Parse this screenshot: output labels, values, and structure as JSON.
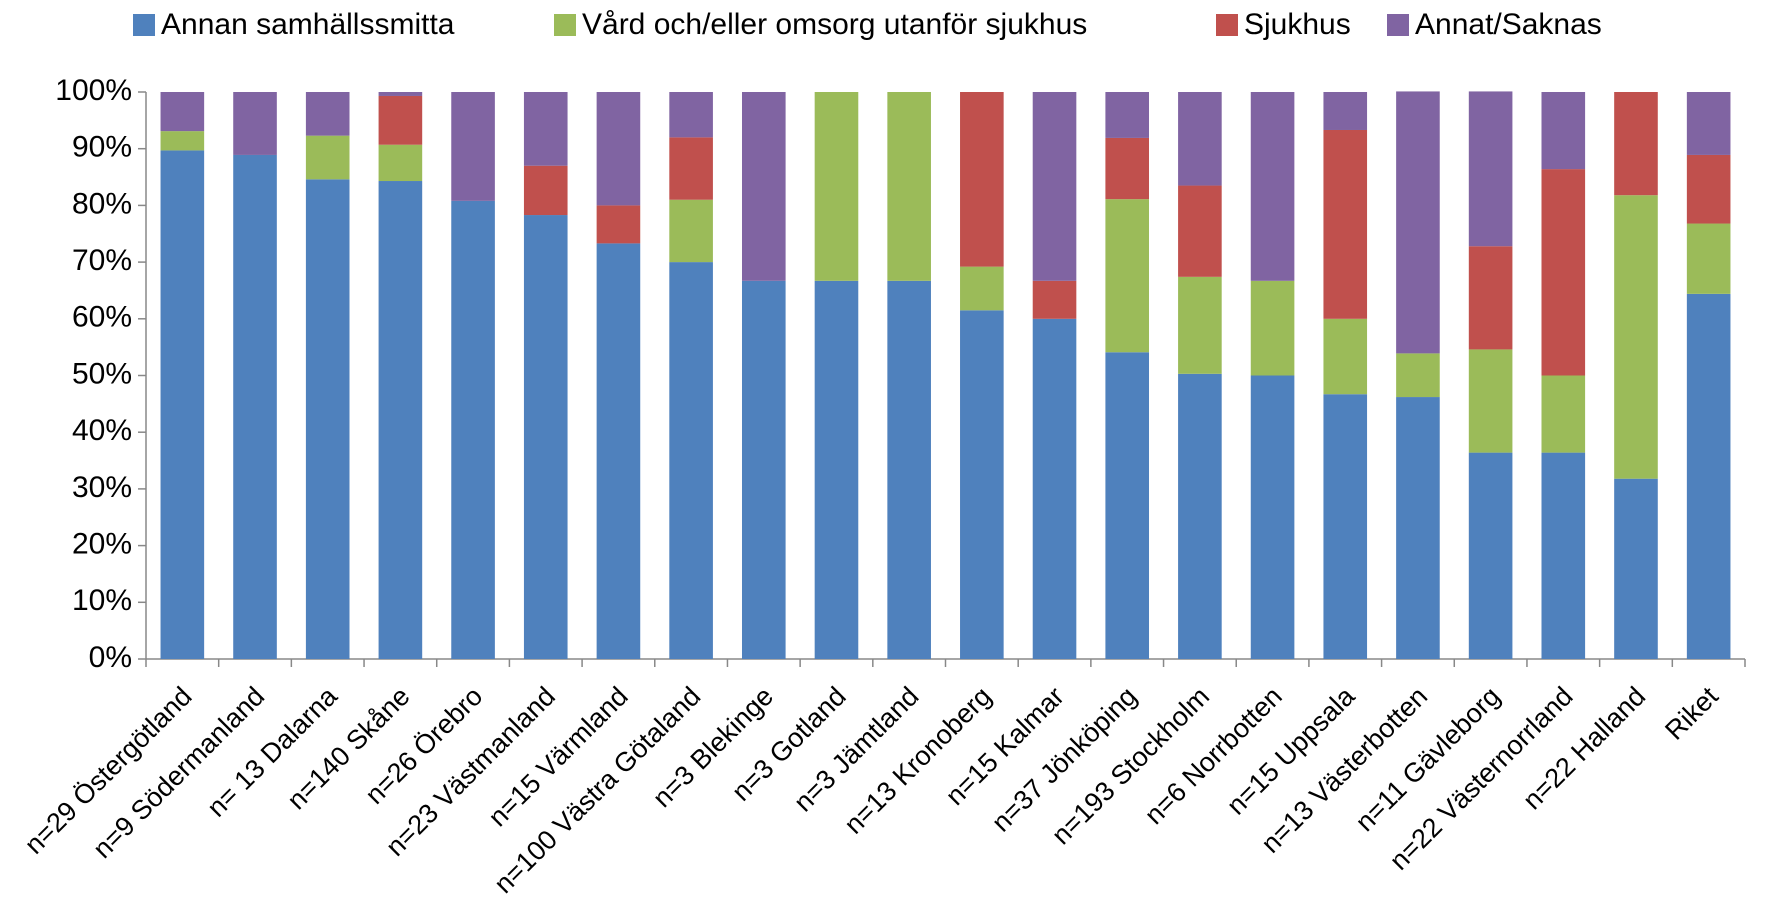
{
  "chart_data": {
    "type": "stacked_bar",
    "categories": [
      "n=29 Östergötland",
      "n=9 Södermanland",
      "n= 13 Dalarna",
      "n=140 Skåne",
      "n=26 Örebro",
      "n=23 Västmanland",
      "n=15 Värmland",
      "n=100 Västra Götaland",
      "n=3 Blekinge",
      "n=3 Gotland",
      "n=3 Jämtland",
      "n=13 Kronoberg",
      "n=15 Kalmar",
      "n=37 Jönköping",
      "n=193 Stockholm",
      "n=6 Norrbotten",
      "n=15 Uppsala",
      "n=13 Västerbotten",
      "n=11 Gävleborg",
      "n=22 Västernorrland",
      "n=22 Halland",
      "Riket"
    ],
    "series": [
      {
        "name": "Annan samhällssmitta",
        "color": "#4f81bd",
        "values": [
          89.7,
          88.9,
          84.6,
          84.3,
          80.8,
          78.3,
          73.3,
          70,
          66.7,
          66.7,
          66.7,
          61.5,
          60,
          54.1,
          50.3,
          50,
          46.7,
          46.2,
          36.4,
          36.4,
          31.8,
          64.4
        ]
      },
      {
        "name": "Vård och/eller omsorg utanför sjukhus",
        "color": "#9bbb59",
        "values": [
          3.4,
          0,
          7.7,
          6.4,
          0,
          0,
          0,
          11,
          0,
          33.3,
          33.3,
          7.7,
          0,
          27,
          17.1,
          16.7,
          13.3,
          7.7,
          18.2,
          13.6,
          50,
          12.4
        ]
      },
      {
        "name": "Sjukhus",
        "color": "#c0504d",
        "values": [
          0,
          0,
          0,
          8.6,
          0,
          8.7,
          6.7,
          11,
          0,
          0,
          0,
          30.8,
          6.7,
          10.8,
          16.1,
          0,
          33.3,
          0,
          18.2,
          36.4,
          18.2,
          12.1
        ]
      },
      {
        "name": "Annat/Saknas",
        "color": "#8064a2",
        "values": [
          6.9,
          11.1,
          7.7,
          0.7,
          19.2,
          13,
          20,
          8,
          33.3,
          0,
          0,
          0,
          33.3,
          8.1,
          16.5,
          33.3,
          6.7,
          46.2,
          27.3,
          13.6,
          0,
          11.1
        ]
      }
    ],
    "ylim": [
      0,
      100
    ],
    "yticks": [
      {
        "value": 0,
        "label": "0%"
      },
      {
        "value": 10,
        "label": "10%"
      },
      {
        "value": 20,
        "label": "20%"
      },
      {
        "value": 30,
        "label": "30%"
      },
      {
        "value": 40,
        "label": "40%"
      },
      {
        "value": 50,
        "label": "50%"
      },
      {
        "value": 60,
        "label": "60%"
      },
      {
        "value": 70,
        "label": "70%"
      },
      {
        "value": 80,
        "label": "80%"
      },
      {
        "value": 90,
        "label": "90%"
      },
      {
        "value": 100,
        "label": "100%"
      }
    ],
    "legend": "top"
  }
}
